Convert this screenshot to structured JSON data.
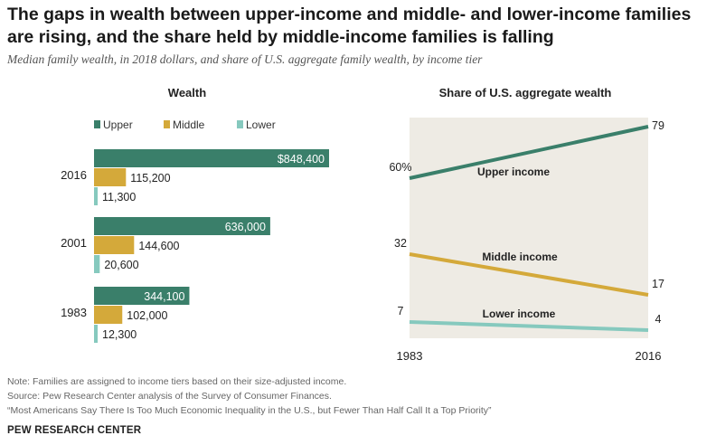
{
  "title_line1": "The gaps in wealth between upper-income and middle- and lower-income families",
  "title_line2": "are rising, and the share held by middle-income families is falling",
  "subtitle": "Median family wealth, in 2018 dollars, and share of U.S. aggregate family wealth, by income tier",
  "colors": {
    "upper": "#3a7f6a",
    "middle": "#d4a93a",
    "lower": "#86c9be",
    "panel_bg": "#eeebe4"
  },
  "chart_data": [
    {
      "type": "bar",
      "title": "Wealth",
      "legend": [
        "Upper",
        "Middle",
        "Lower"
      ],
      "legend_placement": "top",
      "categories": [
        "2016",
        "2001",
        "1983"
      ],
      "series": [
        {
          "name": "Upper",
          "values": [
            848400,
            636000,
            344100
          ],
          "labels": [
            "$848,400",
            "636,000",
            "344,100"
          ]
        },
        {
          "name": "Middle",
          "values": [
            115200,
            144600,
            102000
          ],
          "labels": [
            "115,200",
            "144,600",
            "102,000"
          ]
        },
        {
          "name": "Lower",
          "values": [
            11300,
            20600,
            12300
          ],
          "labels": [
            "11,300",
            "20,600",
            "12,300"
          ]
        }
      ],
      "xlim": [
        0,
        848400
      ]
    },
    {
      "type": "line",
      "title": "Share of U.S. aggregate wealth",
      "x": [
        "1983",
        "2016"
      ],
      "series": [
        {
          "name": "Upper income",
          "values": [
            60,
            79
          ],
          "labels": [
            "60%",
            "79"
          ]
        },
        {
          "name": "Middle income",
          "values": [
            32,
            17
          ],
          "labels": [
            "32",
            "17"
          ]
        },
        {
          "name": "Lower income",
          "values": [
            7,
            4
          ],
          "labels": [
            "7",
            "4"
          ]
        }
      ]
    }
  ],
  "notes": [
    "Note: Families are assigned to income tiers based on their size-adjusted income.",
    "Source: Pew Research Center analysis of the Survey of Consumer Finances.",
    "“Most Americans Say There Is Too Much Economic Inequality in the U.S., but Fewer Than Half Call It a Top Priority”"
  ],
  "brand": "PEW RESEARCH CENTER"
}
